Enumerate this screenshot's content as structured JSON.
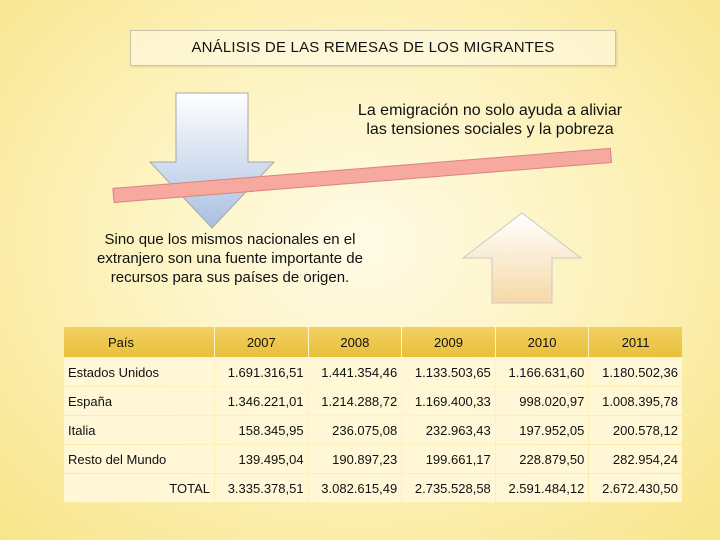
{
  "title": "ANÁLISIS DE LAS REMESAS DE LOS MIGRANTES",
  "text_right": "La emigración no solo ayuda a aliviar las tensiones sociales y la pobreza",
  "text_left": "Sino que los mismos nacionales en el extranjero son una fuente importante de recursos para sus países de origen.",
  "colors": {
    "bar": "#f7a9a0",
    "arrow_down": "#b9cde7",
    "arrow_up": "#fbe9c4",
    "table_header": "#eec64a",
    "table_cell": "#fff7d6"
  },
  "icons": {
    "down_arrow": "arrow-down-icon",
    "up_arrow": "arrow-up-icon"
  },
  "table": {
    "headers": [
      "País",
      "2007",
      "2008",
      "2009",
      "2010",
      "2011"
    ],
    "rows": [
      {
        "country": "Estados Unidos",
        "values": [
          "1.691.316,51",
          "1.441.354,46",
          "1.133.503,65",
          "1.166.631,60",
          "1.180.502,36"
        ]
      },
      {
        "country": "España",
        "values": [
          "1.346.221,01",
          "1.214.288,72",
          "1.169.400,33",
          "998.020,97",
          "1.008.395,78"
        ]
      },
      {
        "country": "Italia",
        "values": [
          "158.345,95",
          "236.075,08",
          "232.963,43",
          "197.952,05",
          "200.578,12"
        ]
      },
      {
        "country": "Resto del Mundo",
        "values": [
          "139.495,04",
          "190.897,23",
          "199.661,17",
          "228.879,50",
          "282.954,24"
        ]
      },
      {
        "country": "TOTAL",
        "values": [
          "3.335.378,51",
          "3.082.615,49",
          "2.735.528,58",
          "2.591.484,12",
          "2.672.430,50"
        ]
      }
    ]
  }
}
